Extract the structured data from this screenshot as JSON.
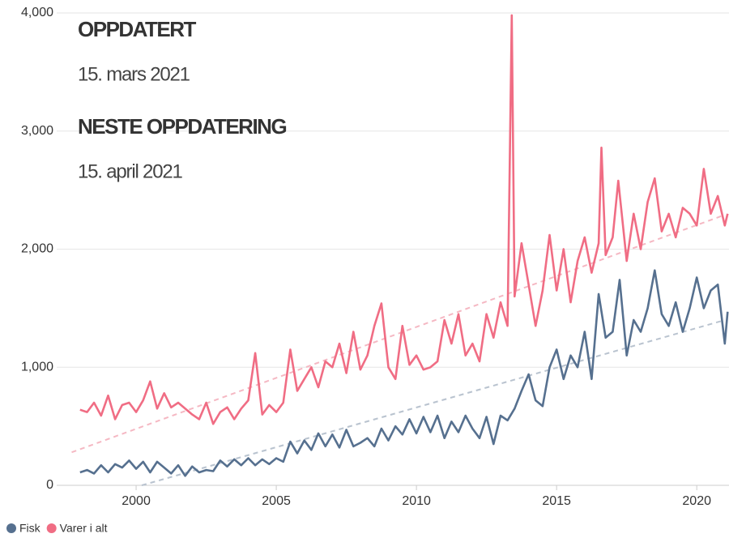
{
  "chart_data": {
    "type": "line",
    "annotations": [
      "OPPDATERT",
      "15. mars 2021",
      "NESTE OPPDATERING",
      "15. april 2021"
    ],
    "xlim": [
      1997.6,
      2021.15
    ],
    "xticks": [
      2000,
      2005,
      2010,
      2015,
      2020
    ],
    "ylim": [
      0,
      4000
    ],
    "yticks": [
      0,
      {
        "value": 1000,
        "label": "1,000"
      },
      {
        "value": 2000,
        "label": "2,000"
      },
      {
        "value": 3000,
        "label": "3,000"
      },
      {
        "value": 4000,
        "label": "4,000"
      }
    ],
    "grid": true,
    "legend": "bottom-left",
    "series": [
      {
        "name": "Fisk",
        "color": "#56708f",
        "x": [
          1998,
          1998.25,
          1998.5,
          1998.75,
          1999,
          1999.25,
          1999.5,
          1999.75,
          2000,
          2000.25,
          2000.5,
          2000.75,
          2001,
          2001.25,
          2001.5,
          2001.75,
          2002,
          2002.25,
          2002.5,
          2002.75,
          2003,
          2003.25,
          2003.5,
          2003.75,
          2004,
          2004.25,
          2004.5,
          2004.75,
          2005,
          2005.25,
          2005.5,
          2005.75,
          2006,
          2006.25,
          2006.5,
          2006.75,
          2007,
          2007.25,
          2007.5,
          2007.75,
          2008,
          2008.25,
          2008.5,
          2008.75,
          2009,
          2009.25,
          2009.5,
          2009.75,
          2010,
          2010.25,
          2010.5,
          2010.75,
          2011,
          2011.25,
          2011.5,
          2011.75,
          2012,
          2012.25,
          2012.5,
          2012.75,
          2013,
          2013.25,
          2013.5,
          2013.75,
          2014,
          2014.25,
          2014.5,
          2014.75,
          2015,
          2015.25,
          2015.5,
          2015.75,
          2016,
          2016.25,
          2016.5,
          2016.75,
          2017,
          2017.25,
          2017.5,
          2017.75,
          2018,
          2018.25,
          2018.5,
          2018.75,
          2019,
          2019.25,
          2019.5,
          2019.75,
          2020,
          2020.25,
          2020.5,
          2020.75,
          2021,
          2021.1
        ],
        "values": [
          110,
          130,
          100,
          170,
          110,
          180,
          150,
          210,
          140,
          200,
          110,
          200,
          150,
          100,
          170,
          80,
          160,
          110,
          130,
          120,
          210,
          160,
          220,
          170,
          230,
          170,
          220,
          180,
          230,
          200,
          370,
          270,
          380,
          300,
          440,
          330,
          430,
          320,
          470,
          330,
          360,
          400,
          330,
          480,
          380,
          500,
          430,
          560,
          440,
          580,
          450,
          590,
          400,
          540,
          450,
          590,
          480,
          400,
          580,
          350,
          590,
          550,
          650,
          800,
          940,
          720,
          670,
          1000,
          1150,
          900,
          1100,
          1000,
          1300,
          900,
          1620,
          1250,
          1300,
          1740,
          1100,
          1400,
          1300,
          1500,
          1820,
          1450,
          1350,
          1550,
          1300,
          1500,
          1760,
          1500,
          1650,
          1700,
          1200,
          1470
        ]
      },
      {
        "name": "Varer i alt",
        "color": "#f06d84",
        "x": [
          1998,
          1998.25,
          1998.5,
          1998.75,
          1999,
          1999.25,
          1999.5,
          1999.75,
          2000,
          2000.25,
          2000.5,
          2000.75,
          2001,
          2001.25,
          2001.5,
          2001.75,
          2002,
          2002.25,
          2002.5,
          2002.75,
          2003,
          2003.25,
          2003.5,
          2003.75,
          2004,
          2004.25,
          2004.5,
          2004.75,
          2005,
          2005.25,
          2005.5,
          2005.75,
          2006,
          2006.25,
          2006.5,
          2006.75,
          2007,
          2007.25,
          2007.5,
          2007.75,
          2008,
          2008.25,
          2008.5,
          2008.75,
          2009,
          2009.25,
          2009.5,
          2009.75,
          2010,
          2010.25,
          2010.5,
          2010.75,
          2011,
          2011.25,
          2011.5,
          2011.75,
          2012,
          2012.25,
          2012.5,
          2012.75,
          2013,
          2013.25,
          2013.4,
          2013.5,
          2013.75,
          2014,
          2014.25,
          2014.5,
          2014.75,
          2015,
          2015.25,
          2015.5,
          2015.75,
          2016,
          2016.25,
          2016.5,
          2016.6,
          2016.75,
          2017,
          2017.2,
          2017.5,
          2017.75,
          2018,
          2018.25,
          2018.5,
          2018.75,
          2019,
          2019.25,
          2019.5,
          2019.75,
          2020,
          2020.25,
          2020.5,
          2020.75,
          2021,
          2021.1
        ],
        "values": [
          640,
          620,
          700,
          590,
          760,
          560,
          680,
          700,
          620,
          720,
          880,
          650,
          780,
          660,
          700,
          650,
          600,
          560,
          700,
          520,
          620,
          660,
          560,
          650,
          720,
          1120,
          600,
          680,
          620,
          700,
          1150,
          800,
          900,
          1000,
          830,
          1050,
          1000,
          1200,
          950,
          1300,
          980,
          1100,
          1350,
          1540,
          1000,
          900,
          1350,
          1020,
          1100,
          980,
          1000,
          1050,
          1400,
          1200,
          1450,
          1100,
          1200,
          1050,
          1450,
          1250,
          1550,
          1350,
          3980,
          1600,
          2050,
          1700,
          1350,
          1650,
          2120,
          1650,
          2000,
          1550,
          1900,
          2100,
          1800,
          2050,
          2860,
          1950,
          2100,
          2580,
          1900,
          2300,
          2000,
          2400,
          2600,
          2150,
          2300,
          2100,
          2350,
          2300,
          2200,
          2680,
          2300,
          2450,
          2200,
          2300
        ]
      }
    ],
    "trends": [
      {
        "color": "#b9c3cf",
        "x": [
          2000.2,
          2021
        ],
        "values": [
          0,
          1400
        ]
      },
      {
        "color": "#f5b8c3",
        "x": [
          1997.7,
          2021
        ],
        "values": [
          280,
          2290
        ]
      }
    ]
  }
}
